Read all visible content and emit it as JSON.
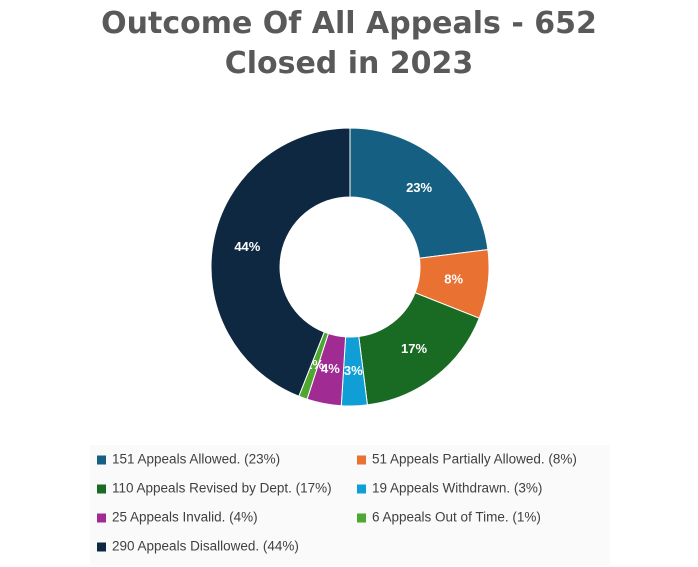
{
  "chart_data": {
    "type": "donut",
    "title": "Outcome Of All Appeals - 652 Closed in 2023",
    "categories": [
      "151 Appeals Allowed. (23%)",
      "51 Appeals Partially Allowed. (8%)",
      "110 Appeals Revised by Dept. (17%)",
      "19 Appeals Withdrawn. (3%)",
      "25 Appeals Invalid. (4%)",
      "6 Appeals Out of Time. (1%)",
      "290 Appeals Disallowed. (44%)"
    ],
    "values": [
      23,
      8,
      17,
      3,
      4,
      1,
      44
    ],
    "value_labels": [
      "23%",
      "8%",
      "17%",
      "3%",
      "4%",
      "1%",
      "44%"
    ],
    "colors": [
      "#156082",
      "#e97132",
      "#196b24",
      "#0f9ed5",
      "#a02b93",
      "#4ea72e",
      "#0e2841"
    ],
    "legend": "bottom"
  }
}
